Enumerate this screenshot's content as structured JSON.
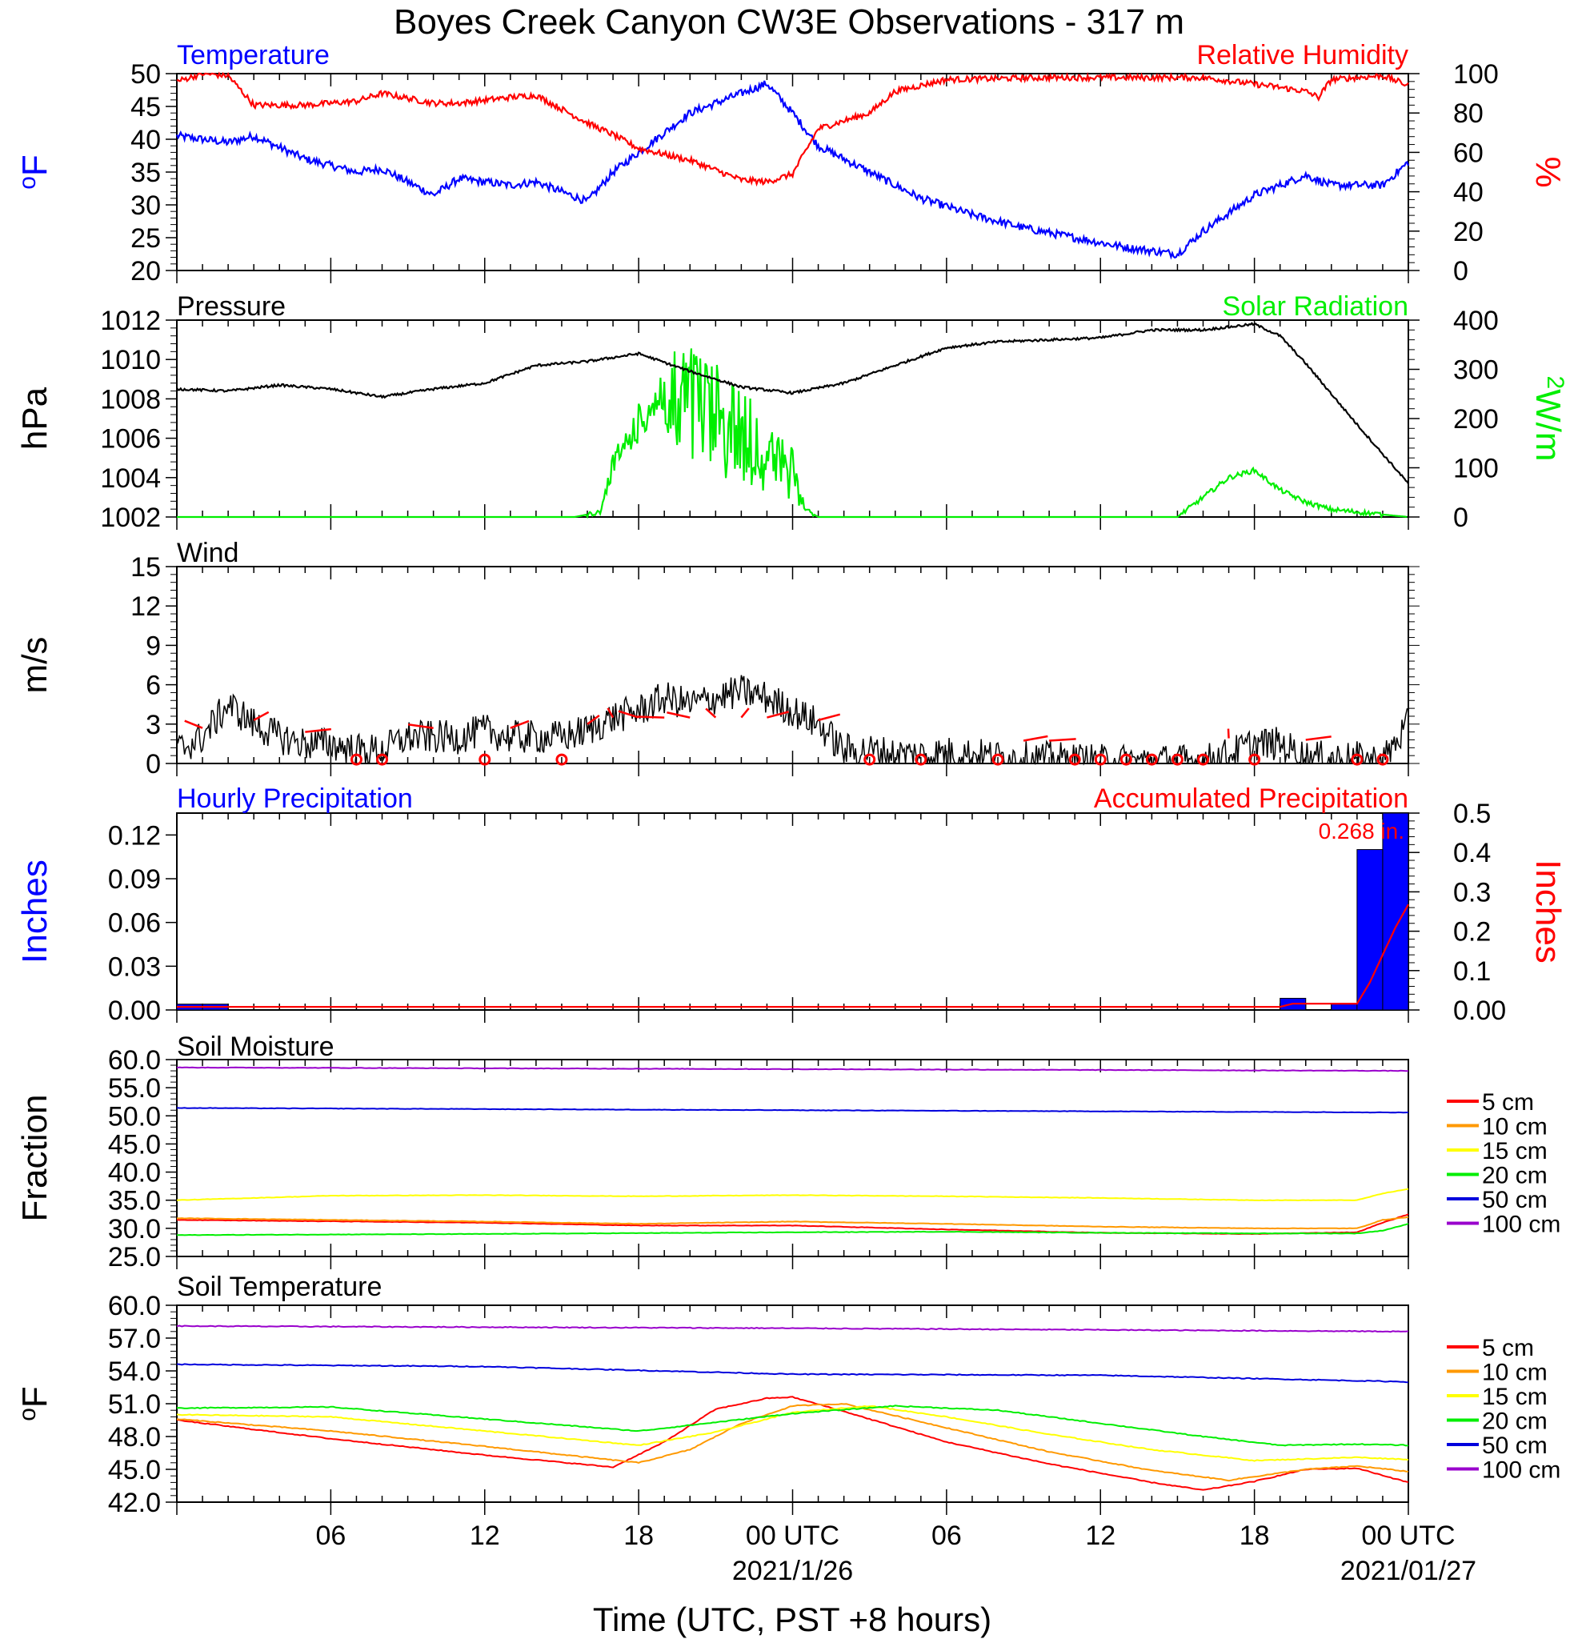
{
  "title": "Boyes Creek Canyon CW3E Observations - 317 m",
  "xaxis": {
    "label": "Time (UTC, PST +8 hours)",
    "range_hours": [
      -24,
      24
    ],
    "ticks": [
      {
        "h": -18,
        "label": "06"
      },
      {
        "h": -12,
        "label": "12"
      },
      {
        "h": -6,
        "label": "18"
      },
      {
        "h": 0,
        "label": "00 UTC",
        "sub": "2021/1/26"
      },
      {
        "h": 6,
        "label": "06"
      },
      {
        "h": 12,
        "label": "12"
      },
      {
        "h": 18,
        "label": "18"
      },
      {
        "h": 24,
        "label": "00 UTC",
        "sub": "2021/01/27"
      }
    ]
  },
  "panels": {
    "temp_rh": {
      "left_title": "Temperature",
      "right_title": "Relative Humidity",
      "left_unit": "oF",
      "right_unit": "%",
      "left_ticks": [
        "50",
        "45",
        "40",
        "35",
        "30",
        "25",
        "20"
      ],
      "right_ticks": [
        "100",
        "80",
        "60",
        "40",
        "20",
        "0"
      ]
    },
    "pressure": {
      "left_title": "Pressure",
      "right_title": "Solar Radiation",
      "left_unit": "hPa",
      "right_unit": "W/m2",
      "left_ticks": [
        "1012",
        "1010",
        "1008",
        "1006",
        "1004",
        "1002"
      ],
      "right_ticks": [
        "400",
        "300",
        "200",
        "100",
        "0"
      ]
    },
    "wind": {
      "left_title": "Wind",
      "left_unit": "m/s",
      "left_ticks": [
        "15",
        "12",
        "9",
        "6",
        "3",
        "0"
      ]
    },
    "precip": {
      "left_title": "Hourly Precipitation",
      "right_title": "Accumulated Precipitation",
      "left_unit": "Inches",
      "right_unit": "Inches",
      "left_ticks": [
        "0.12",
        "0.09",
        "0.06",
        "0.03",
        "0.00"
      ],
      "right_ticks": [
        "0.5",
        "0.4",
        "0.3",
        "0.2",
        "0.1",
        "0.00"
      ],
      "total_label": "0.268 in."
    },
    "soil_moisture": {
      "left_title": "Soil Moisture",
      "left_unit": "Fraction",
      "left_ticks": [
        "60.0",
        "55.0",
        "50.0",
        "45.0",
        "40.0",
        "35.0",
        "30.0",
        "25.0"
      ]
    },
    "soil_temp": {
      "left_title": "Soil Temperature",
      "left_unit": "oF",
      "left_ticks": [
        "60.0",
        "57.0",
        "54.0",
        "51.0",
        "48.0",
        "45.0",
        "42.0"
      ]
    }
  },
  "legend": [
    {
      "label": "5 cm",
      "color": "#ff0000"
    },
    {
      "label": "10 cm",
      "color": "#ff9900"
    },
    {
      "label": "15 cm",
      "color": "#ffff00"
    },
    {
      "label": "20 cm",
      "color": "#00ee00"
    },
    {
      "label": "50 cm",
      "color": "#0000dd"
    },
    {
      "label": "100 cm",
      "color": "#9900cc"
    }
  ],
  "chart_data": [
    {
      "type": "line",
      "title": "Temperature / Relative Humidity",
      "x_unit": "hours relative to 2021/1/26 00 UTC",
      "series": [
        {
          "name": "Temperature",
          "axis": "left",
          "unit": "oF",
          "color": "#0000ff",
          "ylim": [
            20,
            50
          ],
          "x": [
            -24,
            -22,
            -21,
            -19,
            -17,
            -16,
            -14,
            -13,
            -11,
            -10,
            -8,
            -7,
            -6,
            -5,
            -4,
            -2,
            -1,
            0,
            1,
            3,
            5,
            7,
            9,
            11,
            13,
            15,
            16,
            18,
            20,
            21,
            23,
            24
          ],
          "y": [
            40.5,
            39.5,
            40.5,
            37,
            35,
            35.5,
            31.5,
            34,
            33,
            33.5,
            30.5,
            35,
            38,
            41,
            44,
            47,
            48.5,
            44,
            39,
            35,
            31,
            28.5,
            26.5,
            25,
            23.5,
            22.5,
            26,
            31.5,
            34.5,
            33,
            33,
            36.5
          ]
        },
        {
          "name": "Relative Humidity",
          "axis": "right",
          "unit": "%",
          "color": "#ff0000",
          "ylim": [
            0,
            100
          ],
          "x": [
            -24,
            -23,
            -22,
            -21,
            -19,
            -17,
            -16,
            -14,
            -13,
            -11,
            -10,
            -8,
            -7,
            -6,
            -4,
            -2,
            -1,
            0,
            1,
            3,
            4,
            6,
            10,
            16,
            19,
            20,
            20.5,
            21,
            23,
            24
          ],
          "y": [
            96,
            100,
            99,
            84,
            84,
            86,
            90,
            85,
            85,
            88,
            89,
            75,
            69,
            62,
            56,
            46,
            45,
            49,
            72,
            80,
            91,
            97,
            98,
            98,
            93,
            91,
            88,
            97,
            99,
            94
          ]
        }
      ]
    },
    {
      "type": "line",
      "title": "Pressure / Solar Radiation",
      "x_unit": "hours relative to 2021/1/26 00 UTC",
      "series": [
        {
          "name": "Pressure",
          "axis": "left",
          "unit": "hPa",
          "color": "#000000",
          "ylim": [
            1002,
            1012
          ],
          "x": [
            -24,
            -22,
            -20,
            -18,
            -16,
            -14,
            -12,
            -10,
            -8,
            -6,
            -4,
            -2,
            0,
            2,
            4,
            6,
            8,
            10,
            12,
            14,
            16,
            18,
            19,
            20,
            22,
            24
          ],
          "y": [
            1008.5,
            1008.4,
            1008.7,
            1008.5,
            1008.1,
            1008.5,
            1008.8,
            1009.7,
            1009.9,
            1010.3,
            1009.4,
            1008.6,
            1008.3,
            1008.8,
            1009.7,
            1010.6,
            1010.9,
            1011.0,
            1011.1,
            1011.5,
            1011.5,
            1011.8,
            1011.2,
            1009.8,
            1006.7,
            1003.7
          ]
        },
        {
          "name": "Solar Radiation",
          "axis": "right",
          "unit": "W/m2",
          "color": "#00ee00",
          "ylim": [
            0,
            400
          ],
          "x": [
            -24,
            -8.5,
            -7.5,
            -7,
            -6,
            -5,
            -4,
            -3,
            -2,
            -1,
            0,
            0.5,
            1,
            11,
            11.1,
            12,
            15,
            16,
            17,
            18,
            19,
            20,
            21,
            24
          ],
          "y": [
            0,
            0,
            10,
            130,
            230,
            320,
            370,
            320,
            270,
            200,
            140,
            15,
            0,
            0,
            0,
            0,
            0,
            40,
            80,
            95,
            55,
            30,
            15,
            0
          ]
        }
      ]
    },
    {
      "type": "line",
      "title": "Wind",
      "x_unit": "hours relative to 2021/1/26 00 UTC",
      "series": [
        {
          "name": "Wind speed",
          "axis": "left",
          "unit": "m/s",
          "color": "#000000",
          "ylim": [
            0,
            15
          ],
          "x": [
            -24,
            -23,
            -22,
            -21,
            -20,
            -19,
            -18,
            -17,
            -16,
            -15,
            -14,
            -13,
            -12,
            -11,
            -10,
            -9,
            -8,
            -7,
            -6,
            -5,
            -4,
            -3,
            -2,
            -1,
            0,
            1,
            2,
            3,
            4,
            5,
            6,
            7,
            8,
            9,
            10,
            11,
            12,
            13,
            14,
            15,
            16,
            17,
            18,
            19,
            20,
            21,
            22,
            23,
            24
          ],
          "y": [
            1,
            2,
            4.5,
            3,
            2,
            1.5,
            1.5,
            1,
            1,
            2,
            2,
            2,
            2.5,
            2,
            2,
            2,
            2.5,
            3.5,
            4,
            5,
            4.5,
            5,
            5.5,
            5,
            4,
            3,
            1,
            1,
            0.7,
            0.7,
            0.8,
            0.7,
            0.5,
            0.4,
            0.4,
            0.3,
            0.2,
            0.2,
            0.2,
            0.2,
            0.2,
            0.7,
            1.5,
            1.5,
            0.5,
            0.4,
            0.4,
            0.2,
            3
          ]
        },
        {
          "name": "Wind barbs",
          "color": "#ff0000",
          "x": [
            -23,
            -21,
            -19,
            -17,
            -16,
            -14,
            -12,
            -11,
            -9,
            -8,
            -7,
            -6,
            -5,
            -4,
            -3,
            -2,
            -1,
            1,
            3,
            5,
            8,
            9,
            10,
            11,
            12,
            13,
            14,
            15,
            16,
            17,
            18,
            20,
            22,
            23
          ],
          "calm": [
            false,
            false,
            false,
            true,
            true,
            false,
            true,
            false,
            true,
            false,
            false,
            false,
            false,
            false,
            false,
            false,
            false,
            false,
            true,
            true,
            true,
            false,
            false,
            true,
            true,
            true,
            true,
            true,
            true,
            false,
            true,
            false,
            true,
            true
          ]
        }
      ]
    },
    {
      "type": "bar",
      "title": "Hourly Precipitation / Accumulated Precipitation",
      "x_unit": "hours relative to 2021/1/26 00 UTC",
      "series": [
        {
          "name": "Hourly Precipitation",
          "axis": "left",
          "unit": "Inches",
          "color": "#0000ff",
          "ylim": [
            0,
            0.135
          ],
          "x": [
            -24,
            -23,
            19,
            21,
            22,
            23
          ],
          "y": [
            0.004,
            0.004,
            0.008,
            0.004,
            0.11,
            0.135
          ]
        },
        {
          "name": "Accumulated Precipitation",
          "axis": "right",
          "unit": "Inches",
          "color": "#ff0000",
          "ylim": [
            0,
            0.5
          ],
          "x": [
            -24,
            19,
            19.5,
            22,
            22.5,
            23,
            23.5,
            24
          ],
          "y": [
            0.008,
            0.008,
            0.016,
            0.016,
            0.07,
            0.14,
            0.21,
            0.268
          ]
        }
      ]
    },
    {
      "type": "line",
      "title": "Soil Moisture",
      "x_unit": "hours relative to 2021/1/26 00 UTC",
      "ylim": [
        25,
        60
      ],
      "series": [
        {
          "name": "5 cm",
          "color": "#ff0000",
          "x": [
            -24,
            -12,
            -6,
            0,
            6,
            12,
            18,
            22,
            23,
            24
          ],
          "y": [
            31.5,
            31,
            30.5,
            30.5,
            29.8,
            29.2,
            29,
            29.3,
            31,
            32.5
          ]
        },
        {
          "name": "10 cm",
          "color": "#ff9900",
          "x": [
            -24,
            -12,
            -6,
            0,
            6,
            12,
            18,
            22,
            23,
            24
          ],
          "y": [
            31.8,
            31.2,
            30.8,
            31.2,
            30.8,
            30.3,
            30,
            30,
            31.5,
            32
          ]
        },
        {
          "name": "15 cm",
          "color": "#ffff00",
          "x": [
            -24,
            -18,
            -12,
            -6,
            0,
            6,
            12,
            18,
            22,
            23,
            24
          ],
          "y": [
            35,
            35.8,
            35.9,
            35.7,
            35.9,
            35.7,
            35.4,
            35,
            35,
            36.2,
            37
          ]
        },
        {
          "name": "20 cm",
          "color": "#00ee00",
          "x": [
            -24,
            -12,
            0,
            6,
            12,
            18,
            22,
            23,
            24
          ],
          "y": [
            28.8,
            29,
            29.3,
            29.4,
            29.2,
            29.1,
            29.1,
            29.6,
            30.8
          ]
        },
        {
          "name": "50 cm",
          "color": "#0000dd",
          "x": [
            -24,
            0,
            24
          ],
          "y": [
            51.4,
            51,
            50.6
          ]
        },
        {
          "name": "100 cm",
          "color": "#9900cc",
          "x": [
            -24,
            0,
            24
          ],
          "y": [
            58.6,
            58.3,
            58
          ]
        }
      ]
    },
    {
      "type": "line",
      "title": "Soil Temperature",
      "x_unit": "hours relative to 2021/1/26 00 UTC",
      "ylim": [
        42,
        60
      ],
      "series": [
        {
          "name": "5 cm",
          "color": "#ff0000",
          "x": [
            -24,
            -18,
            -12,
            -7,
            -5,
            -3,
            -1,
            0,
            2,
            6,
            10,
            14,
            16,
            18,
            20,
            22,
            24
          ],
          "y": [
            49.5,
            47.8,
            46.3,
            45.2,
            47.5,
            50.5,
            51.5,
            51.6,
            50.3,
            47.5,
            45.5,
            43.8,
            43.1,
            43.9,
            45,
            45.1,
            43.8
          ]
        },
        {
          "name": "10 cm",
          "color": "#ff9900",
          "x": [
            -24,
            -18,
            -12,
            -6,
            -4,
            -2,
            0,
            2,
            6,
            10,
            14,
            17,
            20,
            22,
            24
          ],
          "y": [
            49.6,
            48.5,
            47.1,
            45.6,
            46.8,
            49.2,
            50.8,
            51,
            48.8,
            46.6,
            44.9,
            44,
            45,
            45.3,
            44.8
          ]
        },
        {
          "name": "15 cm",
          "color": "#ffff00",
          "x": [
            -24,
            -18,
            -12,
            -6,
            -3,
            0,
            3,
            6,
            10,
            14,
            18,
            22,
            24
          ],
          "y": [
            50,
            49.8,
            48.5,
            47.2,
            48.4,
            50.2,
            50.8,
            49.8,
            48.2,
            46.8,
            45.8,
            46.1,
            45.9
          ]
        },
        {
          "name": "20 cm",
          "color": "#00ee00",
          "x": [
            -24,
            -18,
            -12,
            -6,
            0,
            4,
            8,
            12,
            16,
            19,
            22,
            24
          ],
          "y": [
            50.6,
            50.7,
            49.6,
            48.5,
            50.1,
            50.8,
            50.4,
            49.2,
            48,
            47.2,
            47.3,
            47.2
          ]
        },
        {
          "name": "50 cm",
          "color": "#0000dd",
          "x": [
            -24,
            -12,
            0,
            12,
            24
          ],
          "y": [
            54.6,
            54.4,
            53.7,
            53.6,
            53
          ]
        },
        {
          "name": "100 cm",
          "color": "#9900cc",
          "x": [
            -24,
            0,
            24
          ],
          "y": [
            58.1,
            57.9,
            57.6
          ]
        }
      ]
    }
  ]
}
